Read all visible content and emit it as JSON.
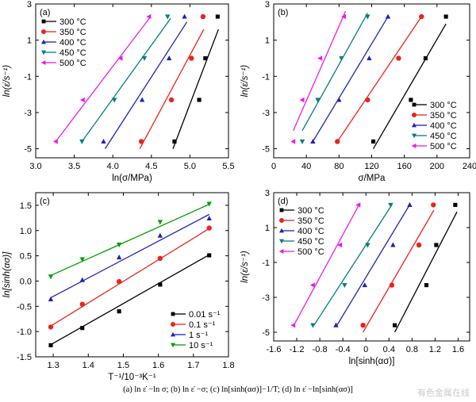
{
  "caption": "(a) ln ε̇ −ln σ; (b) ln ε̇ −σ; (c) ln[sinh(ασ)]−1/T; (d) ln ε̇ −ln[sinh(ασ)]",
  "watermark": "有色金属在线",
  "chart_data": [
    {
      "type": "scatter",
      "panel_label": "(a)",
      "xlabel": "ln(σ/MPa)",
      "ylabel": "ln(ε̇/s⁻¹)",
      "xlim": [
        3.0,
        5.5
      ],
      "ylim": [
        -5.5,
        3
      ],
      "xticks": [
        "3.0",
        "3.5",
        "4.0",
        "4.5",
        "5.0",
        "5.5"
      ],
      "yticks": [
        "-5",
        "-3",
        "-1",
        "1",
        "3"
      ],
      "legend_position": "top-left",
      "series": [
        {
          "name": "300 °C",
          "color": "#000000",
          "marker": "square",
          "x": [
            4.8,
            5.12,
            5.2,
            5.36
          ],
          "y": [
            -4.6,
            -2.3,
            0.0,
            2.3
          ],
          "fit": [
            [
              4.78,
              -5.0
            ],
            [
              5.37,
              1.6
            ]
          ]
        },
        {
          "name": "350 °C",
          "color": "#e8251e",
          "marker": "circle",
          "x": [
            4.37,
            4.76,
            5.02,
            5.17
          ],
          "y": [
            -4.6,
            -2.3,
            0.0,
            2.3
          ],
          "fit": [
            [
              4.35,
              -5.0
            ],
            [
              5.18,
              1.6
            ]
          ]
        },
        {
          "name": "400 °C",
          "color": "#1f22b7",
          "marker": "triangle-up",
          "x": [
            3.88,
            4.38,
            4.73,
            4.93
          ],
          "y": [
            -4.6,
            -2.3,
            0.0,
            2.3
          ],
          "fit": [
            [
              3.9,
              -5.0
            ],
            [
              4.96,
              2.0
            ]
          ]
        },
        {
          "name": "450 °C",
          "color": "#00807a",
          "marker": "triangle-down",
          "x": [
            3.6,
            4.02,
            4.41,
            4.71
          ],
          "y": [
            -4.6,
            -2.3,
            0.0,
            2.3
          ],
          "fit": [
            [
              3.6,
              -4.6
            ],
            [
              4.75,
              2.2
            ]
          ]
        },
        {
          "name": "500 °C",
          "color": "#e81ee8",
          "marker": "triangle-left",
          "x": [
            3.26,
            3.61,
            4.1,
            4.47
          ],
          "y": [
            -4.6,
            -2.3,
            0.0,
            2.3
          ],
          "fit": [
            [
              3.26,
              -4.6
            ],
            [
              4.49,
              2.3
            ]
          ]
        }
      ]
    },
    {
      "type": "scatter",
      "panel_label": "(b)",
      "xlabel": "σ/MPa",
      "ylabel": "ln(ε̇/s⁻¹)",
      "xlim": [
        0,
        240
      ],
      "ylim": [
        -5.5,
        3
      ],
      "xticks": [
        "0",
        "40",
        "80",
        "120",
        "160",
        "200",
        "240"
      ],
      "yticks": [
        "-5",
        "-3",
        "-1",
        "1",
        "3"
      ],
      "legend_position": "bottom-right",
      "series": [
        {
          "name": "300 °C",
          "color": "#000000",
          "marker": "square",
          "x": [
            122,
            168,
            186,
            211
          ],
          "y": [
            -4.6,
            -2.3,
            0.0,
            2.3
          ],
          "fit": [
            [
              122,
              -5.0
            ],
            [
              211,
              1.9
            ]
          ]
        },
        {
          "name": "350 °C",
          "color": "#e8251e",
          "marker": "circle",
          "x": [
            78,
            115,
            153,
            181
          ],
          "y": [
            -4.6,
            -2.3,
            0.0,
            2.3
          ],
          "fit": [
            [
              78,
              -4.6
            ],
            [
              181,
              2.3
            ]
          ]
        },
        {
          "name": "400 °C",
          "color": "#1f22b7",
          "marker": "triangle-up",
          "x": [
            48,
            80,
            117,
            140
          ],
          "y": [
            -4.6,
            -2.3,
            0.0,
            2.3
          ],
          "fit": [
            [
              48,
              -4.6
            ],
            [
              140,
              2.3
            ]
          ]
        },
        {
          "name": "450 °C",
          "color": "#00807a",
          "marker": "triangle-down",
          "x": [
            35,
            54,
            83,
            115
          ],
          "y": [
            -4.6,
            -2.3,
            0.0,
            2.3
          ],
          "fit": [
            [
              35,
              -4.0
            ],
            [
              115,
              2.5
            ]
          ]
        },
        {
          "name": "500 °C",
          "color": "#e81ee8",
          "marker": "triangle-left",
          "x": [
            24,
            35,
            57,
            86
          ],
          "y": [
            -4.6,
            -2.3,
            0.0,
            2.3
          ],
          "fit": [
            [
              24,
              -4.0
            ],
            [
              88,
              2.6
            ]
          ]
        }
      ]
    },
    {
      "type": "scatter",
      "panel_label": "(c)",
      "xlabel": "T⁻¹/10⁻³K⁻¹",
      "ylabel": "ln[sinh(ασ)]",
      "xlim": [
        1.25,
        1.8
      ],
      "ylim": [
        -1.5,
        1.75
      ],
      "xticks": [
        "1.3",
        "1.4",
        "1.5",
        "1.6",
        "1.7",
        "1.8"
      ],
      "yticks": [
        "-1.5",
        "-1.0",
        "-0.5",
        "0.0",
        "0.5",
        "1.0",
        "1.5"
      ],
      "legend_position": "bottom-right",
      "series": [
        {
          "name": "0.01 s⁻¹",
          "color": "#000000",
          "marker": "square",
          "x": [
            1.293,
            1.383,
            1.488,
            1.605,
            1.745
          ],
          "y": [
            -1.27,
            -0.93,
            -0.6,
            -0.07,
            0.51
          ],
          "fit": [
            [
              1.293,
              -1.26
            ],
            [
              1.745,
              0.52
            ]
          ]
        },
        {
          "name": "0.1 s⁻¹",
          "color": "#e8251e",
          "marker": "circle",
          "x": [
            1.293,
            1.383,
            1.488,
            1.605,
            1.745
          ],
          "y": [
            -0.91,
            -0.46,
            -0.01,
            0.45,
            1.05
          ],
          "fit": [
            [
              1.293,
              -0.89
            ],
            [
              1.745,
              1.04
            ]
          ]
        },
        {
          "name": "1 s⁻¹",
          "color": "#1f22b7",
          "marker": "triangle-up",
          "x": [
            1.293,
            1.383,
            1.488,
            1.605,
            1.745
          ],
          "y": [
            -0.36,
            0.02,
            0.47,
            0.9,
            1.24
          ],
          "fit": [
            [
              1.293,
              -0.33
            ],
            [
              1.745,
              1.32
            ]
          ]
        },
        {
          "name": "10 s⁻¹",
          "color": "#00a000",
          "marker": "triangle-down",
          "x": [
            1.293,
            1.383,
            1.488,
            1.605,
            1.745
          ],
          "y": [
            0.09,
            0.43,
            0.72,
            1.17,
            1.53
          ],
          "fit": [
            [
              1.293,
              0.11
            ],
            [
              1.745,
              1.52
            ]
          ]
        }
      ]
    },
    {
      "type": "scatter",
      "panel_label": "(d)",
      "xlabel": "ln[sinh(ασ)]",
      "ylabel": "ln(ε̇/s⁻¹)",
      "xlim": [
        -1.6,
        1.8
      ],
      "ylim": [
        -5.5,
        3
      ],
      "xticks": [
        "-1.6",
        "-1.2",
        "-0.8",
        "-0.4",
        "0",
        "0.4",
        "0.8",
        "1.2",
        "1.6"
      ],
      "yticks": [
        "-5",
        "-3",
        "-1",
        "1",
        "3"
      ],
      "legend_position": "top-left",
      "series": [
        {
          "name": "300 °C",
          "color": "#000000",
          "marker": "square",
          "x": [
            0.5,
            1.05,
            1.22,
            1.55
          ],
          "y": [
            -4.6,
            -2.3,
            0.0,
            2.3
          ],
          "fit": [
            [
              0.5,
              -5.0
            ],
            [
              1.58,
              1.9
            ]
          ]
        },
        {
          "name": "350 °C",
          "color": "#e8251e",
          "marker": "circle",
          "x": [
            -0.05,
            0.45,
            0.92,
            1.17
          ],
          "y": [
            -4.6,
            -2.3,
            0.0,
            2.3
          ],
          "fit": [
            [
              -0.05,
              -5.0
            ],
            [
              1.18,
              2.0
            ]
          ]
        },
        {
          "name": "400 °C",
          "color": "#1f22b7",
          "marker": "triangle-up",
          "x": [
            -0.52,
            -0.02,
            0.47,
            0.76
          ],
          "y": [
            -4.6,
            -2.3,
            0.0,
            2.3
          ],
          "fit": [
            [
              -0.52,
              -4.7
            ],
            [
              0.74,
              2.2
            ]
          ]
        },
        {
          "name": "450 °C",
          "color": "#00807a",
          "marker": "triangle-down",
          "x": [
            -0.92,
            -0.37,
            0.03,
            0.43
          ],
          "y": [
            -4.6,
            -2.3,
            0.0,
            2.3
          ],
          "fit": [
            [
              -0.9,
              -4.6
            ],
            [
              0.45,
              2.3
            ]
          ]
        },
        {
          "name": "500 °C",
          "color": "#e81ee8",
          "marker": "triangle-left",
          "x": [
            -1.26,
            -0.92,
            -0.45,
            -0.13
          ],
          "y": [
            -4.6,
            -2.3,
            0.0,
            2.3
          ],
          "fit": [
            [
              -1.25,
              -4.6
            ],
            [
              -0.12,
              2.3
            ]
          ]
        }
      ]
    }
  ]
}
